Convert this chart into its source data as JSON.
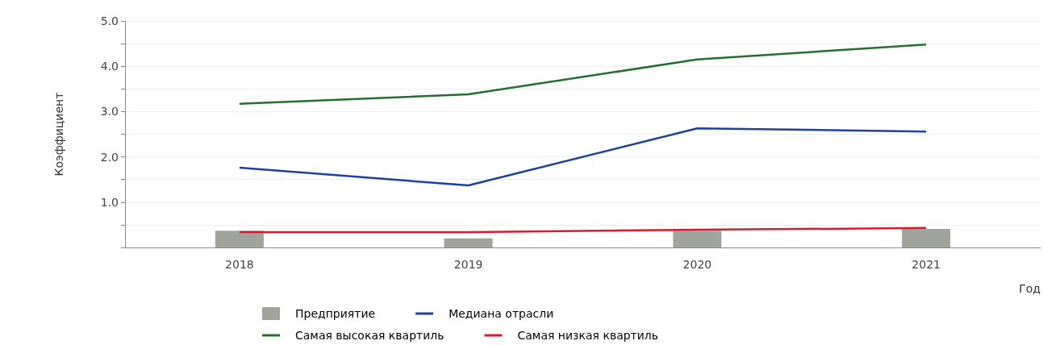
{
  "chart_data": {
    "type": "bar",
    "xlabel": "Год",
    "ylabel": "Коэффициент",
    "categories": [
      "2018",
      "2019",
      "2020",
      "2021"
    ],
    "series": [
      {
        "name": "Предприятие",
        "color": "#a0a49d",
        "values": [
          0.37,
          0.2,
          0.37,
          0.41
        ]
      },
      {
        "name": "Медиана отрасли",
        "type": "line",
        "color": "#1c3faa",
        "values": [
          1.76,
          1.37,
          2.63,
          2.56
        ]
      },
      {
        "name": "Самая высокая квартиль",
        "type": "line",
        "color": "#22702f",
        "values": [
          3.17,
          3.38,
          4.15,
          4.48
        ]
      },
      {
        "name": "Самая низкая квартиль",
        "type": "line",
        "color": "#e0182d",
        "values": [
          0.34,
          0.34,
          0.39,
          0.43
        ]
      }
    ],
    "ylim": [
      0,
      5
    ],
    "yticks": [
      {
        "value": 0,
        "label": null
      },
      {
        "value": 0.5,
        "label": null
      },
      {
        "value": 1,
        "label": "1.0"
      },
      {
        "value": 1.5,
        "label": null
      },
      {
        "value": 2,
        "label": "2.0"
      },
      {
        "value": 2.5,
        "label": null
      },
      {
        "value": 3,
        "label": "3.0"
      },
      {
        "value": 3.5,
        "label": null
      },
      {
        "value": 4,
        "label": "4.0"
      },
      {
        "value": 4.5,
        "label": null
      },
      {
        "value": 5,
        "label": "5.0"
      }
    ],
    "grid": "y",
    "legend": "bottom",
    "marker": "none",
    "line_style": "solid"
  }
}
